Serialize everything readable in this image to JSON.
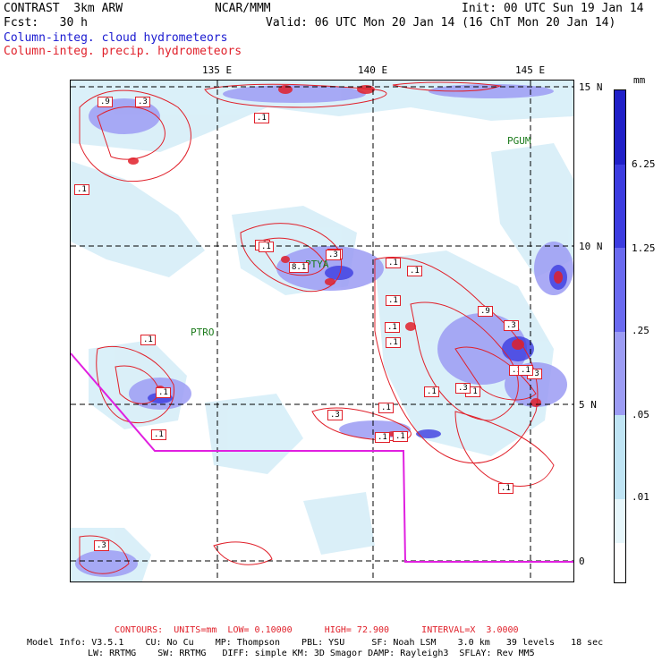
{
  "header": {
    "model": "CONTRAST  3km ARW",
    "org": "NCAR/MMM",
    "init": "Init: 00 UTC Sun 19 Jan 14",
    "fcst": "Fcst:   30 h",
    "valid": "Valid: 06 UTC Mon 20 Jan 14 (16 ChT Mon 20 Jan 14)",
    "field_cloud": "Column-integ. cloud hydrometeors",
    "field_precip": "Column-integ. precip. hydrometeors"
  },
  "axes": {
    "lon_labels": [
      "135 E",
      "140 E",
      "145 E"
    ],
    "lat_labels": [
      "15 N",
      "10 N",
      "5 N",
      "0"
    ]
  },
  "stations": [
    "PGUM",
    "PTYA",
    "PTRO"
  ],
  "contour_labels": [
    ".9",
    ".3",
    ".1",
    ".1",
    ".1",
    ".1",
    ".1",
    ".3",
    ".1",
    "8.1",
    ".3",
    ".1",
    ".1",
    ".1",
    ".1",
    ".9",
    ".3",
    ".1",
    ".3",
    ".1",
    ".1",
    ".1",
    ".3",
    ".1",
    ".1",
    ".3",
    ".1",
    ".1",
    ".3",
    ".1",
    ".1"
  ],
  "colorbar": {
    "unit": "mm",
    "labels": [
      "6.25",
      "1.25",
      ".25",
      ".05",
      ".01"
    ],
    "colors": [
      "#2020c8",
      "#3c3ce0",
      "#6a6af0",
      "#9c9cf4",
      "#bfe4f4",
      "#e6f6fb",
      "#ffffff"
    ]
  },
  "footer": {
    "contours": "CONTOURS:  UNITS=mm  LOW= 0.10000      HIGH= 72.900      INTERVAL=X  3.0000",
    "line1": "Model Info: V3.5.1    CU: No Cu    MP: Thompson    PBL: YSU     SF: Noah LSM    3.0 km   39 levels   18 sec",
    "line2": "LW: RRTMG    SW: RRTMG   DIFF: simple KM: 3D Smagor DAMP: Rayleigh3  SFLAY: Rev MM5"
  }
}
